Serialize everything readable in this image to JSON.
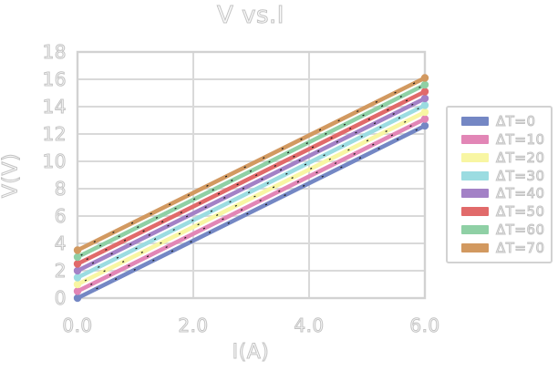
{
  "chart_data": {
    "type": "line",
    "title": "V vs.I",
    "xlabel": "I(A)",
    "ylabel": "V(V)",
    "xlim": [
      0,
      6
    ],
    "ylim": [
      0,
      18
    ],
    "grid": true,
    "legend_position": "right",
    "x": [
      0,
      6
    ],
    "series": [
      {
        "name": "ΔT=0",
        "color": "#7487c4",
        "values": [
          0.0,
          12.6
        ]
      },
      {
        "name": "ΔT=10",
        "color": "#e286b6",
        "values": [
          0.5,
          13.1
        ]
      },
      {
        "name": "ΔT=20",
        "color": "#f8f6a3",
        "values": [
          1.0,
          13.6
        ]
      },
      {
        "name": "ΔT=30",
        "color": "#9bdce1",
        "values": [
          1.5,
          14.1
        ]
      },
      {
        "name": "ΔT=40",
        "color": "#a381c6",
        "values": [
          2.0,
          14.6
        ]
      },
      {
        "name": "ΔT=50",
        "color": "#e16a6a",
        "values": [
          2.5,
          15.1
        ]
      },
      {
        "name": "ΔT=60",
        "color": "#8fd0a5",
        "values": [
          3.0,
          15.6
        ]
      },
      {
        "name": "ΔT=70",
        "color": "#d29960",
        "values": [
          3.5,
          16.1
        ]
      }
    ],
    "xticks": {
      "values": [
        0,
        2,
        4,
        6
      ],
      "labels": [
        "0.0",
        "2.0",
        "4.0",
        "6.0"
      ]
    },
    "yticks": {
      "values": [
        0,
        2,
        4,
        6,
        8,
        10,
        12,
        14,
        16,
        18
      ],
      "labels": [
        "0",
        "2",
        "4",
        "6",
        "8",
        "10",
        "12",
        "14",
        "16",
        "18"
      ]
    },
    "style": {
      "grid_color": "#d9d9d9",
      "border_color": "#d2d2d2",
      "text_outline_color": "#c3c3c3",
      "marker_overlay_color": "#1a1a1a",
      "background": "#ffffff"
    }
  }
}
